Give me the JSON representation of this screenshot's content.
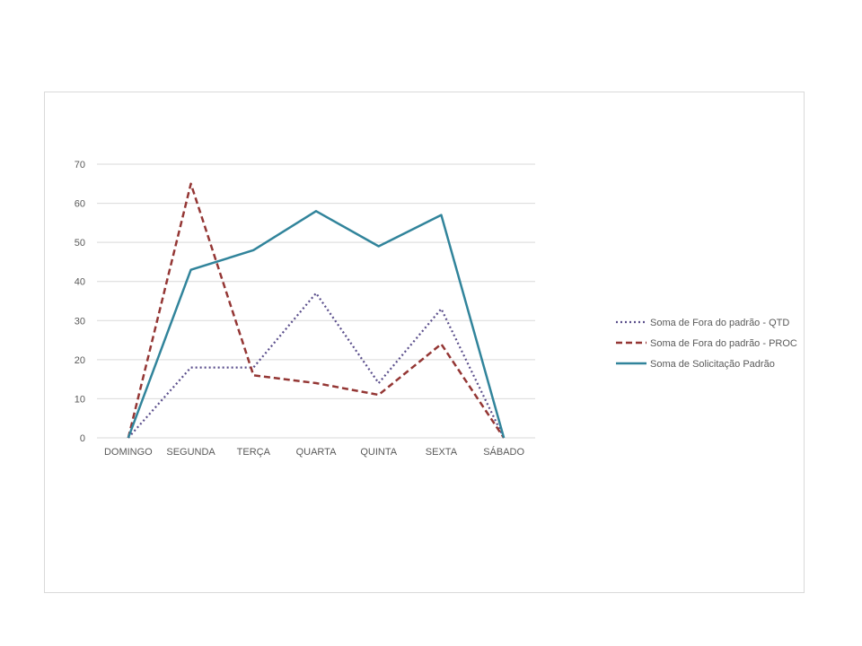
{
  "chart_data": {
    "type": "line",
    "categories": [
      "DOMINGO",
      "SEGUNDA",
      "TERÇA",
      "QUARTA",
      "QUINTA",
      "SEXTA",
      "SÁBADO"
    ],
    "ylim": [
      0,
      70
    ],
    "yticks": [
      0,
      10,
      20,
      30,
      40,
      50,
      60,
      70
    ],
    "grid": true,
    "legend_position": "right",
    "series": [
      {
        "name": "Soma de Fora do padrão - QTD",
        "values": [
          0,
          18,
          18,
          37,
          14,
          33,
          0
        ],
        "color": "#5b4f8c",
        "style": "dotted"
      },
      {
        "name": "Soma de Fora do padrão - PROC",
        "values": [
          0,
          65,
          16,
          14,
          11,
          24,
          0
        ],
        "color": "#943634",
        "style": "dashed"
      },
      {
        "name": "Soma de Solicitação Padrão",
        "values": [
          0,
          43,
          48,
          58,
          49,
          57,
          0
        ],
        "color": "#31849b",
        "style": "solid"
      }
    ]
  }
}
